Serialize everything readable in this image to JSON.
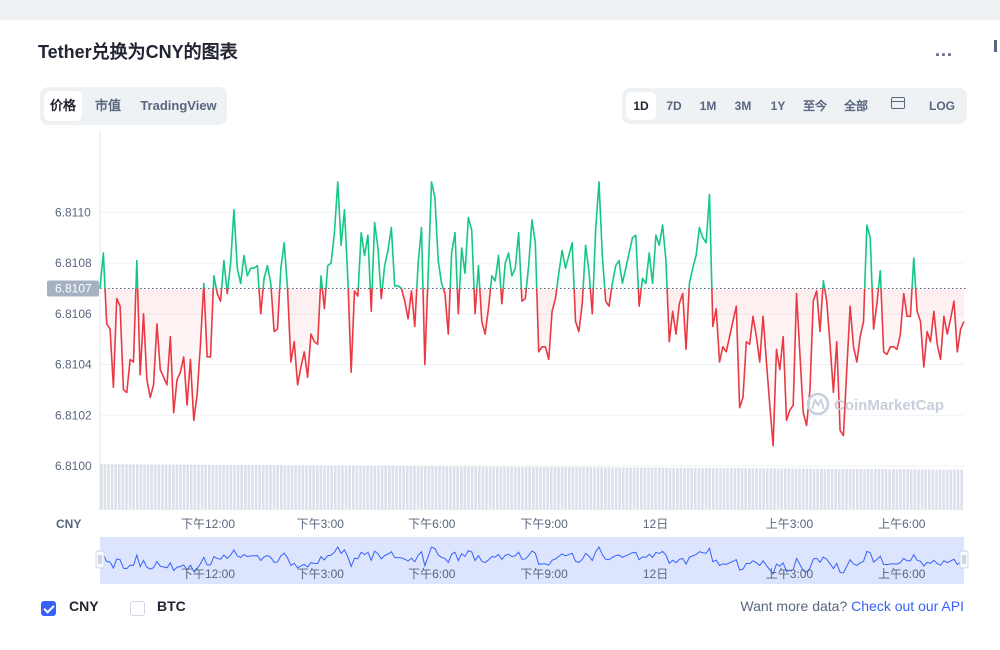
{
  "page": {
    "title": "Tether兑换为CNY的图表",
    "more_label": "..."
  },
  "tabs_left": [
    {
      "label": "价格",
      "active": true
    },
    {
      "label": "市值",
      "active": false
    },
    {
      "label": "TradingView",
      "active": false
    }
  ],
  "tabs_right": [
    {
      "label": "1D",
      "active": true
    },
    {
      "label": "7D",
      "active": false
    },
    {
      "label": "1M",
      "active": false
    },
    {
      "label": "3M",
      "active": false
    },
    {
      "label": "1Y",
      "active": false
    },
    {
      "label": "至今",
      "active": false
    },
    {
      "label": "全部",
      "active": false
    }
  ],
  "calendar_icon": "calendar-icon",
  "log_label": "LOG",
  "legend": [
    {
      "label": "CNY",
      "checked": true
    },
    {
      "label": "BTC",
      "checked": false
    }
  ],
  "footer": {
    "text": "Want more data?",
    "link": "Check out our API"
  },
  "watermark": "CoinMarketCap",
  "colors": {
    "up": "#16c784",
    "down": "#ea3943",
    "volume": "#cfd6e4",
    "navigator_line": "#3861fb",
    "navigator_fill": "#dce5fd"
  },
  "chart_data": {
    "type": "line",
    "y_unit_label": "CNY",
    "y_ticks": [
      "6.8110",
      "6.8108",
      "6.8106",
      "6.8104",
      "6.8102",
      "6.8100"
    ],
    "ylim": [
      6.81,
      6.8111
    ],
    "baseline": 6.8107,
    "baseline_label": "6.8107",
    "x_ticks": [
      {
        "label": "下午12:00",
        "t": 0.125
      },
      {
        "label": "下午3:00",
        "t": 0.255
      },
      {
        "label": "下午6:00",
        "t": 0.384
      },
      {
        "label": "下午9:00",
        "t": 0.514
      },
      {
        "label": "12日",
        "t": 0.643
      },
      {
        "label": "上午3:00",
        "t": 0.798
      },
      {
        "label": "上午6:00",
        "t": 0.928
      }
    ],
    "series": [
      {
        "values": [
          6.8107,
          6.81084,
          6.81056,
          6.81054,
          6.81031,
          6.81066,
          6.81063,
          6.8103,
          6.81029,
          6.81042,
          6.81041,
          6.81081,
          6.81036,
          6.8106,
          6.81034,
          6.81027,
          6.81032,
          6.81056,
          6.81038,
          6.81035,
          6.81032,
          6.81051,
          6.81021,
          6.81034,
          6.81037,
          6.81043,
          6.81024,
          6.81042,
          6.81018,
          6.81028,
          6.81048,
          6.81072,
          6.81043,
          6.81043,
          6.81075,
          6.81068,
          6.81065,
          6.81081,
          6.81068,
          6.8108,
          6.81101,
          6.81078,
          6.81072,
          6.81083,
          6.81075,
          6.81078,
          6.81078,
          6.81079,
          6.8106,
          6.81074,
          6.81079,
          6.81072,
          6.81053,
          6.81054,
          6.81078,
          6.81088,
          6.8107,
          6.81041,
          6.81049,
          6.81032,
          6.81039,
          6.81045,
          6.81035,
          6.81052,
          6.81049,
          6.81048,
          6.81075,
          6.81062,
          6.81079,
          6.8108,
          6.81092,
          6.81112,
          6.81087,
          6.81101,
          6.81074,
          6.81037,
          6.81069,
          6.81067,
          6.81092,
          6.81083,
          6.81091,
          6.81061,
          6.81096,
          6.81086,
          6.81066,
          6.81079,
          6.81085,
          6.81094,
          6.81071,
          6.81071,
          6.8107,
          6.81065,
          6.81058,
          6.81069,
          6.81055,
          6.8108,
          6.81094,
          6.8104,
          6.81076,
          6.81112,
          6.81106,
          6.81081,
          6.81072,
          6.81068,
          6.81052,
          6.81084,
          6.81092,
          6.8106,
          6.81086,
          6.81076,
          6.81098,
          6.81093,
          6.8106,
          6.81079,
          6.81057,
          6.81052,
          6.81062,
          6.81075,
          6.81073,
          6.81083,
          6.81064,
          6.8108,
          6.81084,
          6.81075,
          6.81078,
          6.81092,
          6.81065,
          6.81066,
          6.81079,
          6.81097,
          6.81088,
          6.81045,
          6.81047,
          6.81047,
          6.81042,
          6.81061,
          6.81066,
          6.81076,
          6.81085,
          6.81078,
          6.81083,
          6.81088,
          6.81057,
          6.81053,
          6.81064,
          6.81087,
          6.81077,
          6.8106,
          6.81093,
          6.81112,
          6.81083,
          6.81065,
          6.81063,
          6.81072,
          6.81079,
          6.81081,
          6.81072,
          6.81078,
          6.81084,
          6.8109,
          6.81091,
          6.81063,
          6.81074,
          6.81072,
          6.81084,
          6.81072,
          6.81091,
          6.81087,
          6.81095,
          6.81081,
          6.81049,
          6.81061,
          6.81052,
          6.81064,
          6.81068,
          6.81046,
          6.81072,
          6.81078,
          6.81083,
          6.81094,
          6.8109,
          6.81088,
          6.81107,
          6.81055,
          6.81062,
          6.81041,
          6.81047,
          6.81045,
          6.81051,
          6.81057,
          6.81063,
          6.81023,
          6.81027,
          6.81049,
          6.81048,
          6.81059,
          6.81051,
          6.81041,
          6.81059,
          6.81041,
          6.81024,
          6.81008,
          6.81046,
          6.81038,
          6.81051,
          6.81018,
          6.81022,
          6.81024,
          6.81068,
          6.81044,
          6.81021,
          6.81016,
          6.8103,
          6.81065,
          6.81069,
          6.81053,
          6.81073,
          6.81065,
          6.81048,
          6.81029,
          6.81049,
          6.81014,
          6.81012,
          6.81038,
          6.81063,
          6.81047,
          6.81041,
          6.81051,
          6.81057,
          6.81095,
          6.8109,
          6.81054,
          6.81064,
          6.81077,
          6.81045,
          6.81044,
          6.81047,
          6.81047,
          6.81046,
          6.81052,
          6.81068,
          6.81059,
          6.81059,
          6.81082,
          6.81061,
          6.81057,
          6.81039,
          6.81053,
          6.81049,
          6.81061,
          6.81048,
          6.81042,
          6.81059,
          6.81052,
          6.81058,
          6.81065,
          6.81045,
          6.81054,
          6.81057
        ]
      }
    ],
    "volume_bars": 240,
    "volume_range": [
      0.82,
      0.72
    ]
  }
}
